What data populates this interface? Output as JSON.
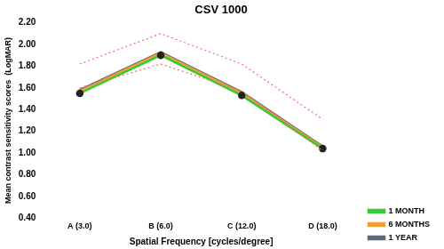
{
  "chart_data": {
    "type": "line",
    "title": "CSV 1000",
    "x_label": "Spatial Frequency [cycles/degree]",
    "y_label": "Mean contrast sensitivity scores  (LogMAR)",
    "categories": [
      "A (3.0)",
      "B (6.0)",
      "C (12.0)",
      "D (18.0)"
    ],
    "series": [
      {
        "color": "#ff6666",
        "line_style": "dotted",
        "marker": "none",
        "values": [
          1.82,
          2.1,
          1.82,
          1.31
        ]
      },
      {
        "color": "#ff6666",
        "line_style": "dotted",
        "marker": "none",
        "values": [
          1.6,
          1.82,
          1.57,
          1.02
        ]
      },
      {
        "name": "1 MONTH",
        "color": "#33cc33",
        "line_style": "solid",
        "marker": "circle",
        "values": [
          1.55,
          1.9,
          1.53,
          1.04
        ]
      },
      {
        "name": "6 MONTHS",
        "color": "#f0a030",
        "line_style": "solid",
        "marker": "none",
        "values": [
          1.57,
          1.92,
          1.55,
          1.05
        ]
      },
      {
        "name": "1 YEAR",
        "color": "#5a6a80",
        "line_style": "solid",
        "marker": "none",
        "values": [
          1.58,
          1.93,
          1.56,
          1.06
        ]
      }
    ],
    "ylim": [
      0.4,
      2.2
    ],
    "yticks": [
      {
        "value": 0.4,
        "label": "0.40"
      },
      {
        "value": 0.6,
        "label": "0.60"
      },
      {
        "value": 0.8,
        "label": "0.80"
      },
      {
        "value": 1.0,
        "label": "1.00"
      },
      {
        "value": 1.2,
        "label": "1.20"
      },
      {
        "value": 1.4,
        "label": "1.40"
      },
      {
        "value": 1.6,
        "label": "1.60"
      },
      {
        "value": 1.8,
        "label": "1.80"
      },
      {
        "value": 2.0,
        "label": "2.00"
      },
      {
        "value": 2.2,
        "label": "2.20"
      }
    ],
    "grid": false,
    "legend": "lower right"
  }
}
